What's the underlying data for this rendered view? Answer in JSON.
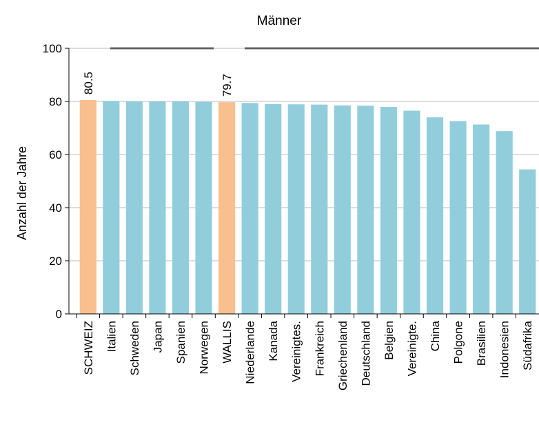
{
  "chart_data": {
    "type": "bar",
    "title": "Männer",
    "y_label": "Anzahl der Jahre",
    "categories": [
      "SCHWEIZ",
      "Italien",
      "Schweden",
      "Japan",
      "Spanien",
      "Norwegen",
      "WALLIS",
      "Niederlande",
      "Kanada",
      "Vereinigtes.",
      "Frankreich",
      "Griechenland",
      "Deutschland",
      "Belgien",
      "Vereinigte.",
      "China",
      "Polgone",
      "Brasilien",
      "Indonesien",
      "Südafrika"
    ],
    "values": [
      80.5,
      80.2,
      80.1,
      80.0,
      80.0,
      79.8,
      79.7,
      79.4,
      79.0,
      78.9,
      78.8,
      78.5,
      78.4,
      77.9,
      76.5,
      74.0,
      72.6,
      71.3,
      68.8,
      54.4
    ],
    "value_labels": [
      "80.5",
      null,
      null,
      null,
      null,
      null,
      "79.7",
      null,
      null,
      null,
      null,
      null,
      null,
      null,
      null,
      null,
      null,
      null,
      null,
      null
    ],
    "colors": [
      "#f9bf8f",
      "#92cddc",
      "#92cddc",
      "#92cddc",
      "#92cddc",
      "#92cddc",
      "#f9bf8f",
      "#92cddc",
      "#92cddc",
      "#92cddc",
      "#92cddc",
      "#92cddc",
      "#92cddc",
      "#92cddc",
      "#92cddc",
      "#92cddc",
      "#92cddc",
      "#92cddc",
      "#92cddc",
      "#92cddc"
    ],
    "ylim": [
      0,
      100
    ],
    "yticks": [
      0,
      20,
      40,
      60,
      80,
      100
    ],
    "grid": true
  }
}
